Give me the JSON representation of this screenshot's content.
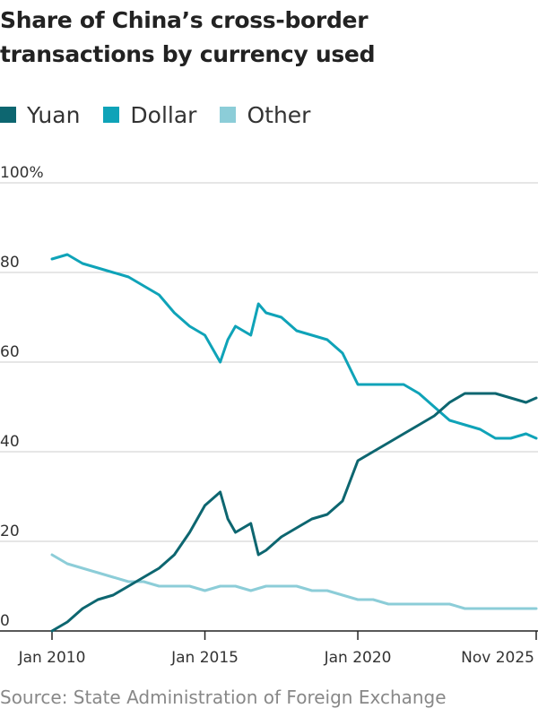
{
  "title": "Share of China’s cross-border transactions by currency used",
  "source": "Source: State Administration of Foreign Exchange",
  "colors": {
    "yuan": "#0d6670",
    "dollar": "#0fa3b8",
    "other": "#8ccdd8"
  },
  "chart_data": {
    "type": "line",
    "title": "Share of China’s cross-border transactions by currency used",
    "xlabel": "",
    "ylabel": "",
    "ylim": [
      0,
      100
    ],
    "xlim": [
      "2010-01",
      "2025-11"
    ],
    "y_ticks": [
      {
        "value": 0,
        "label": "0"
      },
      {
        "value": 20,
        "label": "20"
      },
      {
        "value": 40,
        "label": "40"
      },
      {
        "value": 60,
        "label": "60"
      },
      {
        "value": 80,
        "label": "80"
      },
      {
        "value": 100,
        "label": "100%"
      }
    ],
    "x_ticks": [
      {
        "value": "2010-01",
        "label": "Jan 2010"
      },
      {
        "value": "2015-01",
        "label": "Jan 2015"
      },
      {
        "value": "2020-01",
        "label": "Jan 2020"
      },
      {
        "value": "2025-11",
        "label": "Nov 2025"
      }
    ],
    "grid": true,
    "legend_position": "top-left",
    "series": [
      {
        "name": "Yuan",
        "color": "#0d6670",
        "points": [
          [
            "2010-01",
            0
          ],
          [
            "2010-07",
            2
          ],
          [
            "2011-01",
            5
          ],
          [
            "2011-07",
            7
          ],
          [
            "2012-01",
            8
          ],
          [
            "2012-07",
            10
          ],
          [
            "2013-01",
            12
          ],
          [
            "2013-07",
            14
          ],
          [
            "2014-01",
            17
          ],
          [
            "2014-07",
            22
          ],
          [
            "2015-01",
            28
          ],
          [
            "2015-07",
            31
          ],
          [
            "2015-10",
            25
          ],
          [
            "2016-01",
            22
          ],
          [
            "2016-07",
            24
          ],
          [
            "2016-10",
            17
          ],
          [
            "2017-01",
            18
          ],
          [
            "2017-07",
            21
          ],
          [
            "2018-01",
            23
          ],
          [
            "2018-07",
            25
          ],
          [
            "2019-01",
            26
          ],
          [
            "2019-07",
            29
          ],
          [
            "2020-01",
            38
          ],
          [
            "2020-07",
            40
          ],
          [
            "2021-01",
            42
          ],
          [
            "2021-07",
            44
          ],
          [
            "2022-01",
            46
          ],
          [
            "2022-07",
            48
          ],
          [
            "2023-01",
            51
          ],
          [
            "2023-07",
            53
          ],
          [
            "2024-01",
            53
          ],
          [
            "2024-07",
            53
          ],
          [
            "2025-01",
            52
          ],
          [
            "2025-07",
            51
          ],
          [
            "2025-11",
            52
          ]
        ]
      },
      {
        "name": "Dollar",
        "color": "#0fa3b8",
        "points": [
          [
            "2010-01",
            83
          ],
          [
            "2010-07",
            84
          ],
          [
            "2011-01",
            82
          ],
          [
            "2011-07",
            81
          ],
          [
            "2012-01",
            80
          ],
          [
            "2012-07",
            79
          ],
          [
            "2013-01",
            77
          ],
          [
            "2013-07",
            75
          ],
          [
            "2014-01",
            71
          ],
          [
            "2014-07",
            68
          ],
          [
            "2015-01",
            66
          ],
          [
            "2015-07",
            60
          ],
          [
            "2015-10",
            65
          ],
          [
            "2016-01",
            68
          ],
          [
            "2016-07",
            66
          ],
          [
            "2016-10",
            73
          ],
          [
            "2017-01",
            71
          ],
          [
            "2017-07",
            70
          ],
          [
            "2018-01",
            67
          ],
          [
            "2018-07",
            66
          ],
          [
            "2019-01",
            65
          ],
          [
            "2019-07",
            62
          ],
          [
            "2020-01",
            55
          ],
          [
            "2020-07",
            55
          ],
          [
            "2021-01",
            55
          ],
          [
            "2021-07",
            55
          ],
          [
            "2022-01",
            53
          ],
          [
            "2022-07",
            50
          ],
          [
            "2023-01",
            47
          ],
          [
            "2023-07",
            46
          ],
          [
            "2024-01",
            45
          ],
          [
            "2024-07",
            43
          ],
          [
            "2025-01",
            43
          ],
          [
            "2025-07",
            44
          ],
          [
            "2025-11",
            43
          ]
        ]
      },
      {
        "name": "Other",
        "color": "#8ccdd8",
        "points": [
          [
            "2010-01",
            17
          ],
          [
            "2010-07",
            15
          ],
          [
            "2011-01",
            14
          ],
          [
            "2011-07",
            13
          ],
          [
            "2012-01",
            12
          ],
          [
            "2012-07",
            11
          ],
          [
            "2013-01",
            11
          ],
          [
            "2013-07",
            10
          ],
          [
            "2014-01",
            10
          ],
          [
            "2014-07",
            10
          ],
          [
            "2015-01",
            9
          ],
          [
            "2015-07",
            10
          ],
          [
            "2016-01",
            10
          ],
          [
            "2016-07",
            9
          ],
          [
            "2017-01",
            10
          ],
          [
            "2017-07",
            10
          ],
          [
            "2018-01",
            10
          ],
          [
            "2018-07",
            9
          ],
          [
            "2019-01",
            9
          ],
          [
            "2019-07",
            8
          ],
          [
            "2020-01",
            7
          ],
          [
            "2020-07",
            7
          ],
          [
            "2021-01",
            6
          ],
          [
            "2021-07",
            6
          ],
          [
            "2022-01",
            6
          ],
          [
            "2022-07",
            6
          ],
          [
            "2023-01",
            6
          ],
          [
            "2023-07",
            5
          ],
          [
            "2024-01",
            5
          ],
          [
            "2024-07",
            5
          ],
          [
            "2025-01",
            5
          ],
          [
            "2025-07",
            5
          ],
          [
            "2025-11",
            5
          ]
        ]
      }
    ]
  }
}
